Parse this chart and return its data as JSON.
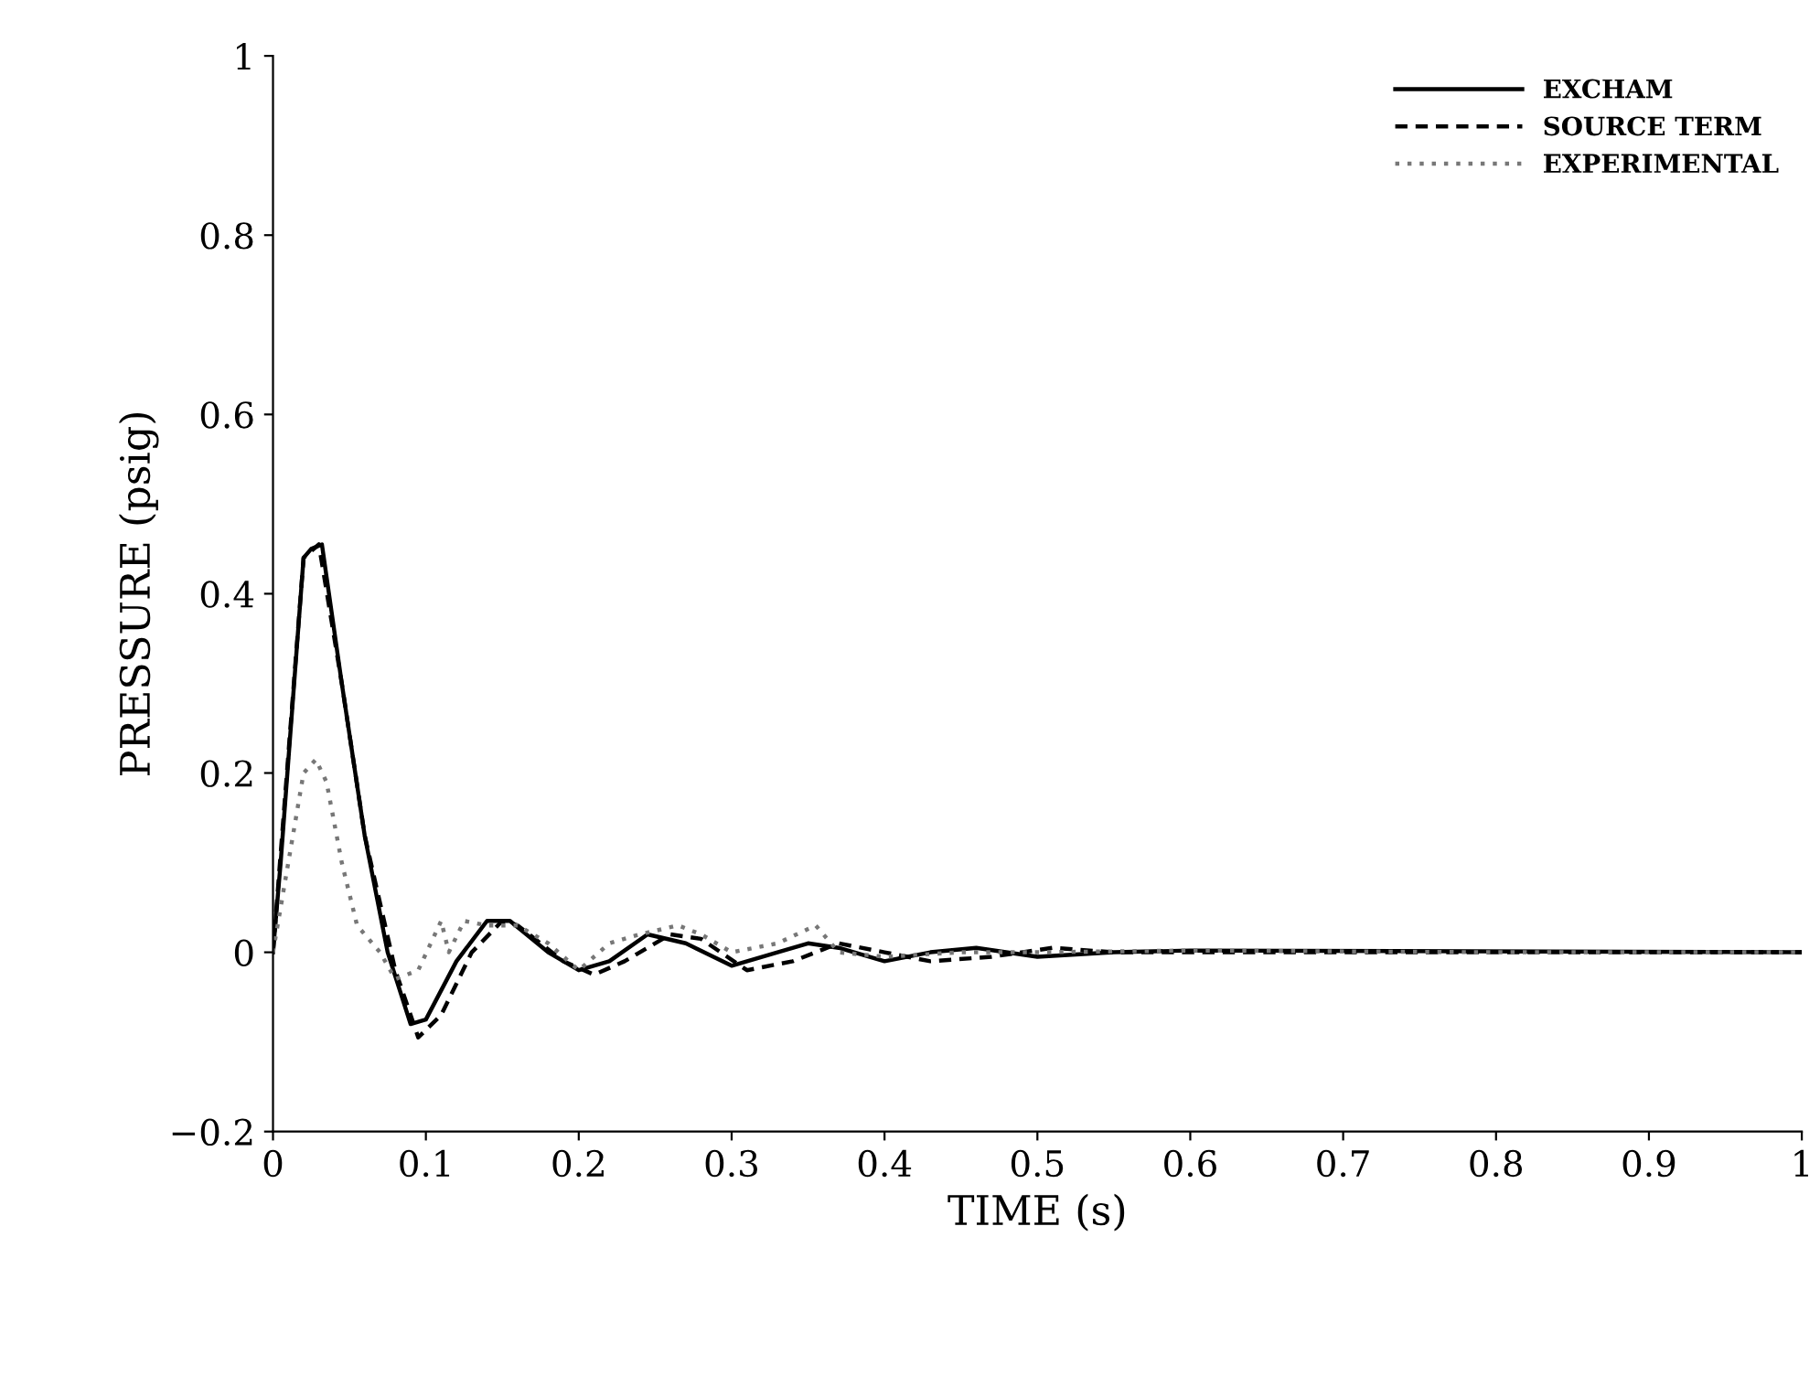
{
  "chart_data": {
    "type": "line",
    "xlabel": "TIME (s)",
    "ylabel": "PRESSURE (psig)",
    "xlim": [
      0,
      1
    ],
    "ylim": [
      -0.2,
      1
    ],
    "xticks": [
      0,
      0.1,
      0.2,
      0.3,
      0.4,
      0.5,
      0.6,
      0.7,
      0.8,
      0.9,
      1
    ],
    "yticks": [
      -0.2,
      0,
      0.2,
      0.4,
      0.6,
      0.8,
      1
    ],
    "grid": false,
    "legend": "top right",
    "series": [
      {
        "name": "EXCHAM",
        "color": "#000000",
        "line_style": "solid",
        "x": [
          0,
          0.005,
          0.02,
          0.025,
          0.032,
          0.045,
          0.06,
          0.075,
          0.09,
          0.1,
          0.12,
          0.14,
          0.155,
          0.18,
          0.2,
          0.22,
          0.245,
          0.27,
          0.3,
          0.33,
          0.35,
          0.37,
          0.4,
          0.43,
          0.46,
          0.5,
          0.55,
          0.6,
          1
        ],
        "values": [
          0,
          0.1,
          0.44,
          0.45,
          0.455,
          0.3,
          0.13,
          0.0,
          -0.08,
          -0.075,
          -0.01,
          0.035,
          0.035,
          0.0,
          -0.02,
          -0.01,
          0.02,
          0.01,
          -0.015,
          0,
          0.01,
          0.005,
          -0.01,
          0,
          0.005,
          -0.005,
          0,
          0.002,
          0
        ]
      },
      {
        "name": "SOURCE TERM",
        "color": "#000000",
        "line_style": "dashed",
        "x": [
          0,
          0.02,
          0.03,
          0.045,
          0.06,
          0.08,
          0.095,
          0.11,
          0.13,
          0.15,
          0.16,
          0.19,
          0.21,
          0.23,
          0.26,
          0.28,
          0.31,
          0.34,
          0.37,
          0.4,
          0.43,
          0.47,
          0.51,
          0.55,
          0.6,
          1
        ],
        "values": [
          0,
          0.44,
          0.455,
          0.3,
          0.13,
          -0.02,
          -0.095,
          -0.07,
          0.0,
          0.035,
          0.03,
          -0.01,
          -0.025,
          -0.01,
          0.02,
          0.015,
          -0.02,
          -0.01,
          0.01,
          0.0,
          -0.01,
          -0.005,
          0.005,
          0,
          0,
          0
        ]
      },
      {
        "name": "EXPERIMENTAL",
        "color": "#777777",
        "line_style": "dotted",
        "x": [
          0,
          0.01,
          0.02,
          0.028,
          0.035,
          0.045,
          0.055,
          0.07,
          0.08,
          0.095,
          0.11,
          0.115,
          0.125,
          0.14,
          0.16,
          0.18,
          0.2,
          0.22,
          0.24,
          0.265,
          0.28,
          0.3,
          0.33,
          0.355,
          0.37,
          0.4,
          0.45,
          0.5,
          0.6,
          0.8,
          1
        ],
        "values": [
          0,
          0.1,
          0.2,
          0.215,
          0.19,
          0.1,
          0.03,
          0.0,
          -0.03,
          -0.02,
          0.035,
          0.0,
          0.035,
          0.03,
          0.03,
          0.01,
          -0.02,
          0.01,
          0.02,
          0.03,
          0.02,
          0.0,
          0.01,
          0.03,
          0.0,
          -0.005,
          0,
          0,
          0.002,
          0,
          0
        ]
      }
    ]
  }
}
